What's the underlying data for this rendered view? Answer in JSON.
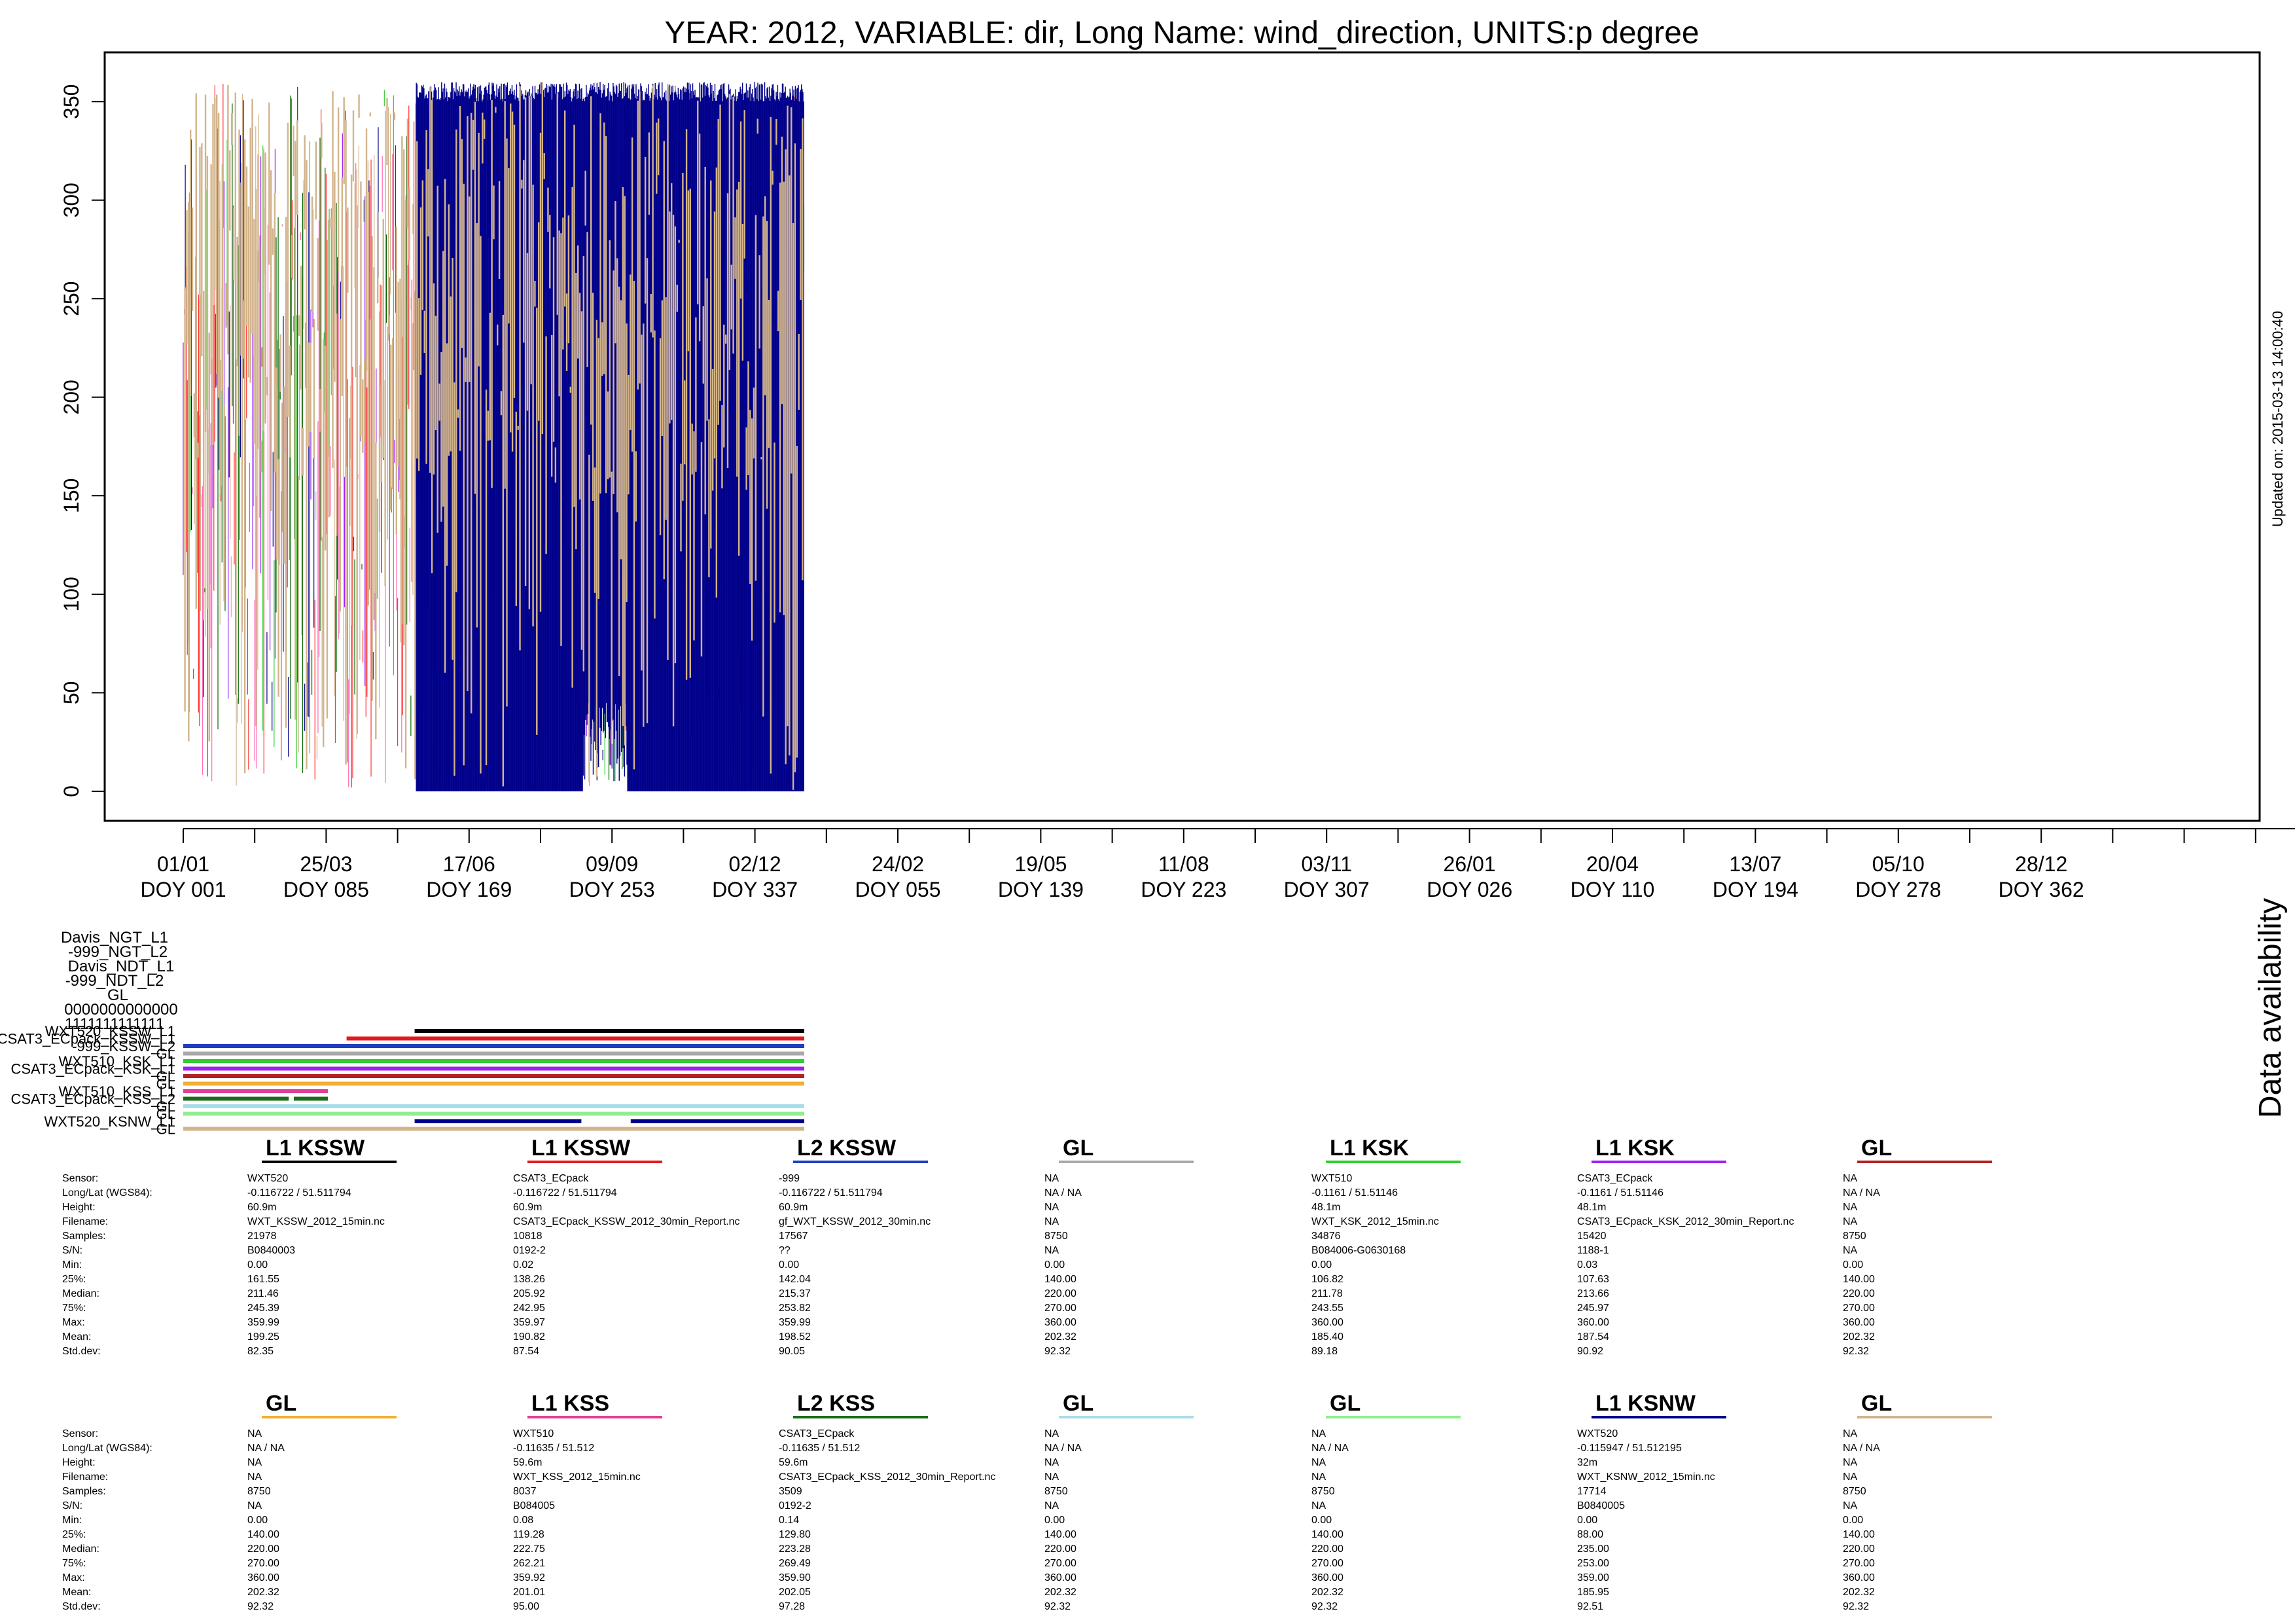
{
  "title": "YEAR: 2012, VARIABLE: dir, Long Name: wind_direction, UNITS:p degree",
  "updated": "Updated on: 2015-03-13 14:00:40",
  "availability_label": "Data availability",
  "chart_data": {
    "type": "line",
    "ylim": [
      -15,
      375
    ],
    "y_ticks": [
      0,
      50,
      100,
      150,
      200,
      250,
      300,
      350
    ],
    "grid": false,
    "legend": "none",
    "x_ticks": [
      {
        "top": "01/01",
        "bottom": "DOY 001"
      },
      {
        "top": "25/03",
        "bottom": "DOY 085"
      },
      {
        "top": "17/06",
        "bottom": "DOY 169"
      },
      {
        "top": "09/09",
        "bottom": "DOY 253"
      },
      {
        "top": "02/12",
        "bottom": "DOY 337"
      },
      {
        "top": "24/02",
        "bottom": "DOY 055"
      },
      {
        "top": "19/05",
        "bottom": "DOY 139"
      },
      {
        "top": "11/08",
        "bottom": "DOY 223"
      },
      {
        "top": "03/11",
        "bottom": "DOY 307"
      },
      {
        "top": "26/01",
        "bottom": "DOY 026"
      },
      {
        "top": "20/04",
        "bottom": "DOY 110"
      },
      {
        "top": "13/07",
        "bottom": "DOY 194"
      },
      {
        "top": "05/10",
        "bottom": "DOY 278"
      },
      {
        "top": "28/12",
        "bottom": "DOY 362"
      }
    ],
    "series_colors": [
      "#006400",
      "#00008B",
      "#D2B48C",
      "#32CD32",
      "#A020F0",
      "#FF3333",
      "#FF69B4"
    ],
    "data_extent_days": [
      1,
      366
    ],
    "availability_rows": [
      {
        "label": "WXT520_KSSW_L1",
        "color": "#000000",
        "segments": [
          [
            137,
            366
          ]
        ]
      },
      {
        "label": "CSAT3_ECpack_KSSW_L1",
        "color": "#E41A1C",
        "segments": [
          [
            97,
            366
          ]
        ]
      },
      {
        "label": "-999_KSSW_L2",
        "color": "#1F3FBF",
        "segments": [
          [
            1,
            366
          ]
        ]
      },
      {
        "label": "GL",
        "color": "#A9A9A9",
        "segments": [
          [
            1,
            366
          ]
        ]
      },
      {
        "label": "WXT510_KSK_L1",
        "color": "#33CC33",
        "segments": [
          [
            1,
            366
          ]
        ]
      },
      {
        "label": "CSAT3_ECpack_KSK_L1",
        "color": "#A020F0",
        "segments": [
          [
            1,
            366
          ]
        ]
      },
      {
        "label": "GL",
        "color": "#B22222",
        "segments": [
          [
            1,
            366
          ]
        ]
      },
      {
        "label": "GL",
        "color": "#F0B030",
        "segments": [
          [
            1,
            366
          ]
        ]
      },
      {
        "label": "WXT510_KSS_L1",
        "color": "#E0409A",
        "segments": [
          [
            1,
            86
          ]
        ]
      },
      {
        "label": "CSAT3_ECpack_KSS_L2",
        "color": "#1B6B1B",
        "segments": [
          [
            1,
            63
          ],
          [
            66,
            86
          ]
        ]
      },
      {
        "label": "GL",
        "color": "#A8DDE8",
        "segments": [
          [
            1,
            366
          ]
        ]
      },
      {
        "label": "GL",
        "color": "#90EE90",
        "segments": [
          [
            1,
            366
          ]
        ]
      },
      {
        "label": "WXT520_KSNW_L1",
        "color": "#00008B",
        "segments": [
          [
            137,
            235
          ],
          [
            264,
            366
          ]
        ]
      },
      {
        "label": "GL",
        "color": "#D2B48C",
        "segments": [
          [
            1,
            366
          ]
        ]
      }
    ],
    "overlapping_labels": [
      "Davis_NGT_L1",
      "-999_NGT_L2",
      "Davis_NDT_L1",
      "-999_NDT_L2",
      "GL",
      "0000000000000",
      "1111111111111"
    ]
  },
  "stat_labels": [
    "Sensor:",
    "Long/Lat (WGS84):",
    "Height:",
    "Filename:",
    "Samples:",
    "S/N:",
    "Min:",
    "25%:",
    "Median:",
    "75%:",
    "Max:",
    "Mean:",
    "Std.dev:"
  ],
  "stats_rows": [
    [
      {
        "title": "L1 KSSW",
        "color": "#000000",
        "values": [
          "WXT520",
          "-0.116722 / 51.511794",
          "60.9m",
          "WXT_KSSW_2012_15min.nc",
          "21978",
          "B0840003",
          "0.00",
          "161.55",
          "211.46",
          "245.39",
          "359.99",
          "199.25",
          "82.35"
        ]
      },
      {
        "title": "L1 KSSW",
        "color": "#E41A1C",
        "values": [
          "CSAT3_ECpack",
          "-0.116722 / 51.511794",
          "60.9m",
          "CSAT3_ECpack_KSSW_2012_30min_Report.nc",
          "10818",
          "0192-2",
          "0.02",
          "138.26",
          "205.92",
          "242.95",
          "359.97",
          "190.82",
          "87.54"
        ]
      },
      {
        "title": "L2 KSSW",
        "color": "#1F3FBF",
        "values": [
          "-999",
          "-0.116722 / 51.511794",
          "60.9m",
          "gf_WXT_KSSW_2012_30min.nc",
          "17567",
          "??",
          "0.00",
          "142.04",
          "215.37",
          "253.82",
          "359.99",
          "198.52",
          "90.05"
        ]
      },
      {
        "title": "GL",
        "color": "#A9A9A9",
        "values": [
          "NA",
          "NA / NA",
          "NA",
          "NA",
          "8750",
          "NA",
          "0.00",
          "140.00",
          "220.00",
          "270.00",
          "360.00",
          "202.32",
          "92.32"
        ]
      },
      {
        "title": "L1 KSK",
        "color": "#33CC33",
        "values": [
          "WXT510",
          "-0.1161 / 51.51146",
          "48.1m",
          "WXT_KSK_2012_15min.nc",
          "34876",
          "B084006-G0630168",
          "0.00",
          "106.82",
          "211.78",
          "243.55",
          "360.00",
          "185.40",
          "89.18"
        ]
      },
      {
        "title": "L1 KSK",
        "color": "#A020F0",
        "values": [
          "CSAT3_ECpack",
          "-0.1161 / 51.51146",
          "48.1m",
          "CSAT3_ECpack_KSK_2012_30min_Report.nc",
          "15420",
          "1188-1",
          "0.03",
          "107.63",
          "213.66",
          "245.97",
          "360.00",
          "187.54",
          "90.92"
        ]
      },
      {
        "title": "GL",
        "color": "#B22222",
        "values": [
          "NA",
          "NA / NA",
          "NA",
          "NA",
          "8750",
          "NA",
          "0.00",
          "140.00",
          "220.00",
          "270.00",
          "360.00",
          "202.32",
          "92.32"
        ]
      }
    ],
    [
      {
        "title": "GL",
        "color": "#F0B030",
        "values": [
          "NA",
          "NA / NA",
          "NA",
          "NA",
          "8750",
          "NA",
          "0.00",
          "140.00",
          "220.00",
          "270.00",
          "360.00",
          "202.32",
          "92.32"
        ]
      },
      {
        "title": "L1 KSS",
        "color": "#E0409A",
        "values": [
          "WXT510",
          "-0.11635 / 51.512",
          "59.6m",
          "WXT_KSS_2012_15min.nc",
          "8037",
          "B084005",
          "0.08",
          "119.28",
          "222.75",
          "262.21",
          "359.92",
          "201.01",
          "95.00"
        ]
      },
      {
        "title": "L2 KSS",
        "color": "#1B6B1B",
        "values": [
          "CSAT3_ECpack",
          "-0.11635 / 51.512",
          "59.6m",
          "CSAT3_ECpack_KSS_2012_30min_Report.nc",
          "3509",
          "0192-2",
          "0.14",
          "129.80",
          "223.28",
          "269.49",
          "359.90",
          "202.05",
          "97.28"
        ]
      },
      {
        "title": "GL",
        "color": "#A8DDE8",
        "values": [
          "NA",
          "NA / NA",
          "NA",
          "NA",
          "8750",
          "NA",
          "0.00",
          "140.00",
          "220.00",
          "270.00",
          "360.00",
          "202.32",
          "92.32"
        ]
      },
      {
        "title": "GL",
        "color": "#90EE90",
        "values": [
          "NA",
          "NA / NA",
          "NA",
          "NA",
          "8750",
          "NA",
          "0.00",
          "140.00",
          "220.00",
          "270.00",
          "360.00",
          "202.32",
          "92.32"
        ]
      },
      {
        "title": "L1 KSNW",
        "color": "#00008B",
        "values": [
          "WXT520",
          "-0.115947 / 51.512195",
          "32m",
          "WXT_KSNW_2012_15min.nc",
          "17714",
          "B0840005",
          "0.00",
          "88.00",
          "235.00",
          "253.00",
          "359.00",
          "185.95",
          "92.51"
        ]
      },
      {
        "title": "GL",
        "color": "#D2B48C",
        "values": [
          "NA",
          "NA / NA",
          "NA",
          "NA",
          "8750",
          "NA",
          "0.00",
          "140.00",
          "220.00",
          "270.00",
          "360.00",
          "202.32",
          "92.32"
        ]
      }
    ]
  ]
}
